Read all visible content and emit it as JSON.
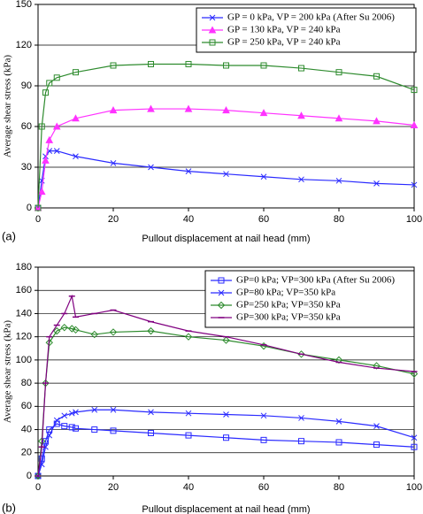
{
  "chart_data": [
    {
      "type": "line",
      "panel_label": "(a)",
      "x_label": "Pullout displacement at nail head (mm)",
      "y_label": "Average shear stress (kPa)",
      "x": [
        0,
        1,
        2,
        3,
        5,
        10,
        20,
        30,
        40,
        50,
        60,
        70,
        80,
        90,
        100
      ],
      "series": [
        {
          "name": "GP = 0 kPa, VP = 200 kPa (After Su 2006)",
          "color": "#2a2aff",
          "marker": "x",
          "values": [
            0,
            20,
            38,
            42,
            42,
            38,
            33,
            30,
            27,
            25,
            23,
            21,
            20,
            18,
            17
          ]
        },
        {
          "name": "GP = 130 kPa, VP = 240 kPa",
          "color": "#ff33ff",
          "marker": "triangle",
          "values": [
            0,
            12,
            35,
            50,
            60,
            66,
            72,
            73,
            73,
            72,
            70,
            68,
            66,
            64,
            61
          ]
        },
        {
          "name": "GP = 250 kPa, VP = 240 kPa",
          "color": "#2e8b2e",
          "marker": "square",
          "values": [
            0,
            60,
            85,
            92,
            96,
            100,
            105,
            106,
            106,
            105,
            105,
            103,
            100,
            97,
            87
          ]
        }
      ],
      "xlim": [
        0,
        100
      ],
      "xticks": [
        0,
        20,
        40,
        60,
        80,
        100
      ],
      "ylim": [
        0,
        150
      ],
      "yticks": [
        0,
        30,
        60,
        90,
        120,
        150
      ],
      "grid": true,
      "legend": "upper right"
    },
    {
      "type": "line",
      "panel_label": "(b)",
      "x_label": "Pullout displacement at nail head (mm)",
      "y_label": "Average shear stress (kPa)",
      "x": [
        0,
        1,
        2,
        3,
        5,
        7,
        9,
        10,
        15,
        20,
        30,
        40,
        50,
        60,
        70,
        80,
        90,
        100
      ],
      "series": [
        {
          "name": "GP=0 kPa; VP=300 kPa (After Su 2006)",
          "color": "#2a2aff",
          "marker": "square",
          "values": [
            0,
            15,
            30,
            40,
            45,
            43,
            42,
            41,
            40,
            39,
            37,
            35,
            33,
            31,
            30,
            29,
            27,
            25
          ]
        },
        {
          "name": "GP=80 kPa; VP=350 kPa",
          "color": "#2a2aff",
          "marker": "x",
          "values": [
            0,
            10,
            25,
            35,
            48,
            52,
            54,
            55,
            57,
            57,
            55,
            54,
            53,
            52,
            50,
            47,
            43,
            33
          ]
        },
        {
          "name": "GP=250 kPa; VP=350 kPa",
          "color": "#2e8b2e",
          "marker": "diamond",
          "values": [
            0,
            30,
            80,
            115,
            125,
            128,
            127,
            126,
            122,
            124,
            125,
            120,
            117,
            112,
            105,
            100,
            95,
            88
          ]
        },
        {
          "name": "GP=300 kPa; VP=350 kPa",
          "color": "#800080",
          "marker": "dash",
          "values": [
            0,
            25,
            80,
            120,
            130,
            140,
            155,
            137,
            140,
            143,
            133,
            125,
            120,
            113,
            105,
            98,
            93,
            90
          ]
        }
      ],
      "xlim": [
        0,
        100
      ],
      "xticks": [
        0,
        20,
        40,
        60,
        80,
        100
      ],
      "ylim": [
        0,
        180
      ],
      "yticks": [
        0,
        20,
        40,
        60,
        80,
        100,
        120,
        140,
        160,
        180
      ],
      "grid": true,
      "legend": "upper right"
    }
  ]
}
